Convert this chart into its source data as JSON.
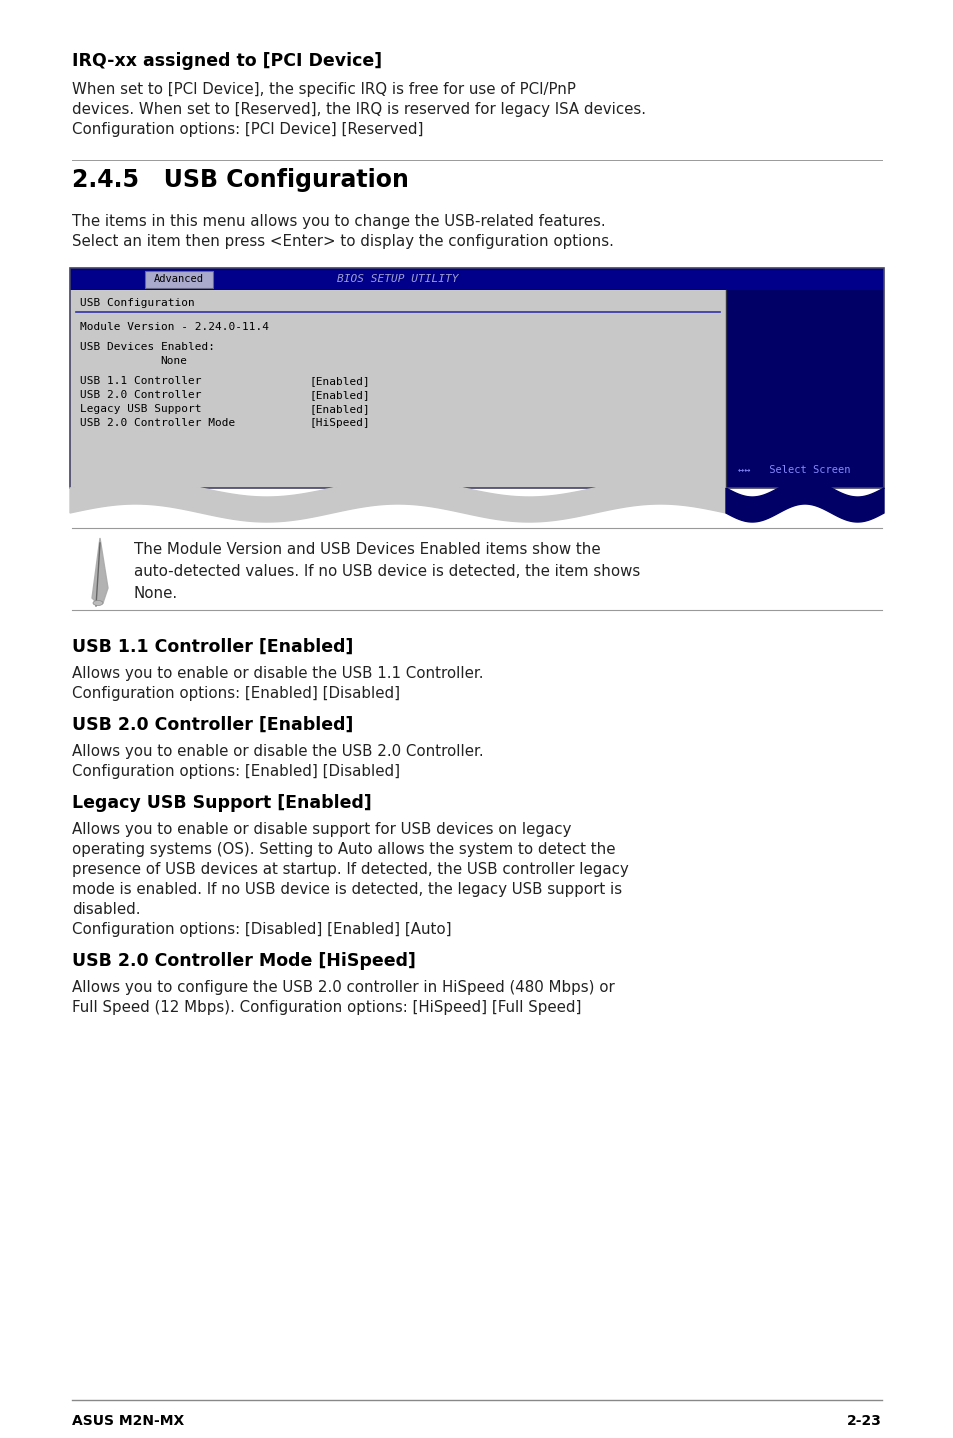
{
  "bg_color": "#ffffff",
  "footer_left": "ASUS M2N-MX",
  "footer_right": "2-23",
  "section_irq_title": "IRQ-xx assigned to [PCI Device]",
  "section_irq_body_1": "When set to [PCI Device], the specific IRQ is free for use of PCI/PnP",
  "section_irq_body_2": "devices. When set to [Reserved], the IRQ is reserved for legacy ISA devices.",
  "section_irq_body_3": "Configuration options: [PCI Device] [Reserved]",
  "section_245_title": "2.4.5   USB Configuration",
  "section_245_body_1": "The items in this menu allows you to change the USB-related features.",
  "section_245_body_2": "Select an item then press <Enter> to display the configuration options.",
  "bios_title_bar_text": "Advanced",
  "bios_center_text": "BIOS SETUP UTILITY",
  "bios_header": "USB Configuration",
  "bios_line1": "Module Version - 2.24.0-11.4",
  "bios_line2": "USB Devices Enabled:",
  "bios_line3": "         None",
  "bios_entries": [
    [
      "USB 1.1 Controller",
      "[Enabled]"
    ],
    [
      "USB 2.0 Controller",
      "[Enabled]"
    ],
    [
      "Legacy USB Support",
      "[Enabled]"
    ],
    [
      "USB 2.0 Controller Mode",
      "[HiSpeed]"
    ]
  ],
  "bios_sidebar_text": "↔↔   Select Screen",
  "note_text_1": "The Module Version and USB Devices Enabled items show the",
  "note_text_2": "auto-detected values. If no USB device is detected, the item shows",
  "note_text_3": "None.",
  "section_usb11_title": "USB 1.1 Controller [Enabled]",
  "section_usb11_body_1": "Allows you to enable or disable the USB 1.1 Controller.",
  "section_usb11_body_2": "Configuration options: [Enabled] [Disabled]",
  "section_usb20_title": "USB 2.0 Controller [Enabled]",
  "section_usb20_body_1": "Allows you to enable or disable the USB 2.0 Controller.",
  "section_usb20_body_2": "Configuration options: [Enabled] [Disabled]",
  "section_legacy_title": "Legacy USB Support [Enabled]",
  "section_legacy_body_1": "Allows you to enable or disable support for USB devices on legacy",
  "section_legacy_body_2": "operating systems (OS). Setting to Auto allows the system to detect the",
  "section_legacy_body_3": "presence of USB devices at startup. If detected, the USB controller legacy",
  "section_legacy_body_4": "mode is enabled. If no USB device is detected, the legacy USB support is",
  "section_legacy_body_5": "disabled.",
  "section_legacy_body_6": "Configuration options: [Disabled] [Enabled] [Auto]",
  "section_mode_title": "USB 2.0 Controller Mode [HiSpeed]",
  "section_mode_body_1": "Allows you to configure the USB 2.0 controller in HiSpeed (480 Mbps) or",
  "section_mode_body_2": "Full Speed (12 Mbps). Configuration options: [HiSpeed] [Full Speed]",
  "title_bold_color": "#000000",
  "body_color": "#222222",
  "bios_blue": "#00008B",
  "bios_gray": "#c8c8c8",
  "bios_dark_blue": "#000066",
  "bios_text_color": "#000000",
  "sidebar_text_color": "#8888ff",
  "line_color": "#999999"
}
